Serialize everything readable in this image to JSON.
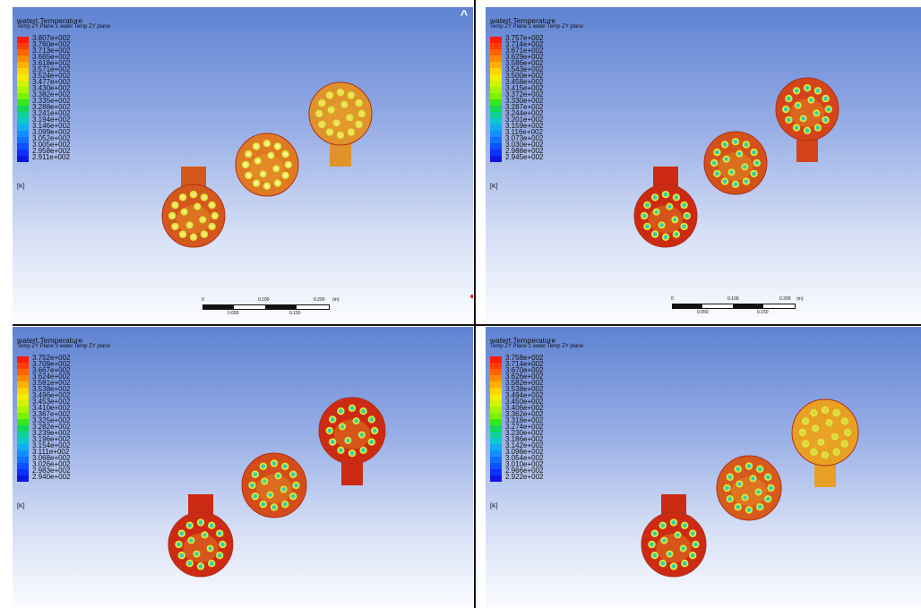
{
  "panels": [
    {
      "title": "watert.Temperature",
      "subtitle": "Temp ZY Plane 1 water Temp ZY plane",
      "ticks": [
        "3.807e+002",
        "3.760e+002",
        "3.713e+002",
        "3.665e+002",
        "3.618e+002",
        "3.571e+002",
        "3.524e+002",
        "3.477e+002",
        "3.430e+002",
        "3.382e+002",
        "3.335e+002",
        "3.288e+002",
        "3.241e+002",
        "3.194e+002",
        "3.146e+002",
        "3.099e+002",
        "3.052e+002",
        "3.005e+002",
        "2.958e+002",
        "2.911e+002"
      ],
      "unit": "[K]",
      "scale": {
        "labels": [
          "0",
          "0.100",
          "0.200",
          "(m)"
        ],
        "sub_labels": [
          "0.050",
          "0.150"
        ]
      }
    },
    {
      "title": "watert.Temperature",
      "subtitle": "Temp ZY Plane 1 water Temp ZY plane",
      "ticks": [
        "3.757e+002",
        "3.714e+002",
        "3.671e+002",
        "3.629e+002",
        "3.586e+002",
        "3.543e+002",
        "3.500e+002",
        "3.458e+002",
        "3.415e+002",
        "3.372e+002",
        "3.330e+002",
        "3.287e+002",
        "3.244e+002",
        "3.201e+002",
        "3.159e+002",
        "3.116e+002",
        "3.073e+002",
        "3.030e+002",
        "2.988e+002",
        "2.945e+002"
      ],
      "unit": "[K]",
      "scale": {
        "labels": [
          "0",
          "0.100",
          "0.200",
          "(m)"
        ],
        "sub_labels": [
          "0.050",
          "0.150"
        ]
      }
    },
    {
      "title": "watert.Temperature",
      "subtitle": "Temp ZY Plane 3 water Temp ZY plane",
      "ticks": [
        "3.752e+002",
        "3.709e+002",
        "3.667e+002",
        "3.624e+002",
        "3.581e+002",
        "3.538e+002",
        "3.496e+002",
        "3.453e+002",
        "3.410e+002",
        "3.367e+002",
        "3.325e+002",
        "3.282e+002",
        "3.239e+002",
        "3.196e+002",
        "3.154e+002",
        "3.111e+002",
        "3.068e+002",
        "3.026e+002",
        "2.983e+002",
        "2.940e+002"
      ],
      "unit": "[K]"
    },
    {
      "title": "watert.Temperature",
      "subtitle": "Temp ZY Plane 1 water Temp ZY plane",
      "ticks": [
        "3.758e+002",
        "3.714e+002",
        "3.670e+002",
        "3.626e+002",
        "3.582e+002",
        "3.538e+002",
        "3.494e+002",
        "3.450e+002",
        "3.406e+002",
        "3.362e+002",
        "3.318e+002",
        "3.274e+002",
        "3.230e+002",
        "3.186e+002",
        "3.142e+002",
        "3.098e+002",
        "3.054e+002",
        "3.010e+002",
        "2.966e+002",
        "2.922e+002"
      ],
      "unit": "[K]"
    }
  ],
  "colors": {
    "colormap": [
      "#ff1a00",
      "#ff3d00",
      "#ff6200",
      "#ff8a00",
      "#ffb000",
      "#ffd400",
      "#f5ec00",
      "#d2f400",
      "#a8f500",
      "#7af200",
      "#38e61a",
      "#12d858",
      "#0fd096",
      "#0cc8cc",
      "#10aef0",
      "#1290ff",
      "#1070ff",
      "#0e50ff",
      "#0c30ff",
      "#0a18e0"
    ],
    "hot": "#cc2a12",
    "warm": "#d4581c",
    "mid": "#e9a72a",
    "cool": "#2fd0b6",
    "ring": "#d9ea3a"
  },
  "icons": {
    "caret": "caret-up-icon"
  },
  "caret": "^"
}
